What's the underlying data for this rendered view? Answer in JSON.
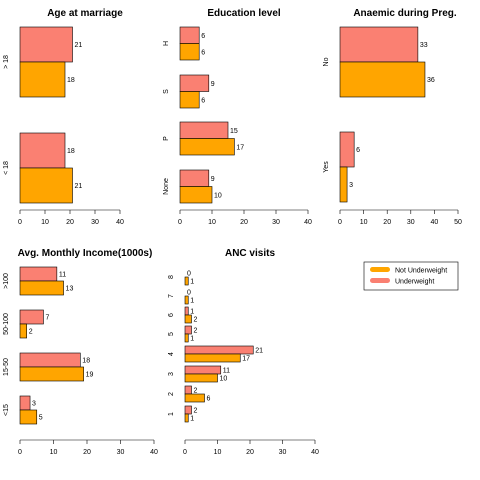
{
  "colors": {
    "not_underweight": "#FFA500",
    "underweight": "#FA8072",
    "outline": "#000000"
  },
  "legend": {
    "items": [
      "Not Underweight",
      "Underweight"
    ],
    "placement": "top-right"
  },
  "chart_data": [
    {
      "type": "bar",
      "orientation": "horizontal",
      "title": "Age at marriage",
      "categories": [
        "> 18",
        "< 18"
      ],
      "series": [
        {
          "name": "Underweight",
          "values": [
            21,
            18
          ]
        },
        {
          "name": "Not Underweight",
          "values": [
            18,
            21
          ]
        }
      ],
      "xlim": [
        0,
        40
      ],
      "xticks": [
        0,
        10,
        20,
        30,
        40
      ]
    },
    {
      "type": "bar",
      "orientation": "horizontal",
      "title": "Education level",
      "categories": [
        "H",
        "S",
        "P",
        "None"
      ],
      "series": [
        {
          "name": "Underweight",
          "values": [
            6,
            9,
            15,
            9
          ]
        },
        {
          "name": "Not Underweight",
          "values": [
            6,
            6,
            17,
            10
          ]
        }
      ],
      "xlim": [
        0,
        40
      ],
      "xticks": [
        0,
        10,
        20,
        30,
        40
      ]
    },
    {
      "type": "bar",
      "orientation": "horizontal",
      "title": "Anaemic during Preg.",
      "categories": [
        "No",
        "Yes"
      ],
      "series": [
        {
          "name": "Underweight",
          "values": [
            33,
            6
          ]
        },
        {
          "name": "Not Underweight",
          "values": [
            36,
            3
          ]
        }
      ],
      "xlim": [
        0,
        50
      ],
      "xticks": [
        0,
        10,
        20,
        30,
        40,
        50
      ]
    },
    {
      "type": "bar",
      "orientation": "horizontal",
      "title": "Avg. Monthly Income(1000s)",
      "categories": [
        ">100",
        "50-100",
        "15-50",
        "<15"
      ],
      "series": [
        {
          "name": "Underweight",
          "values": [
            11,
            7,
            18,
            3
          ]
        },
        {
          "name": "Not Underweight",
          "values": [
            13,
            2,
            19,
            5
          ]
        }
      ],
      "xlim": [
        0,
        40
      ],
      "xticks": [
        0,
        10,
        20,
        30,
        40
      ]
    },
    {
      "type": "bar",
      "orientation": "horizontal",
      "title": "ANC visits",
      "categories": [
        "8",
        "7",
        "6",
        "5",
        "4",
        "3",
        "2",
        "1"
      ],
      "series": [
        {
          "name": "Underweight",
          "values": [
            0,
            0,
            1,
            2,
            21,
            11,
            2,
            2
          ]
        },
        {
          "name": "Not Underweight",
          "values": [
            1,
            1,
            2,
            1,
            17,
            10,
            6,
            1
          ]
        }
      ],
      "xlim": [
        0,
        40
      ],
      "xticks": [
        0,
        10,
        20,
        30,
        40
      ]
    }
  ]
}
